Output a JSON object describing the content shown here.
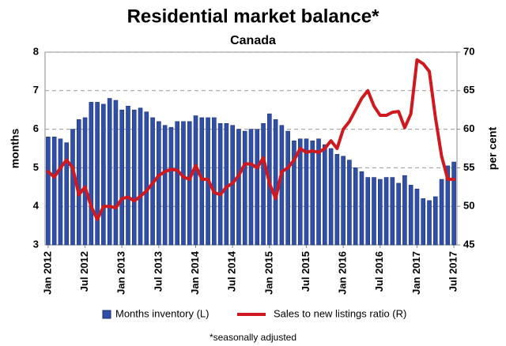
{
  "chart_data": {
    "type": "bar_line",
    "title": "Residential market balance*",
    "subtitle": "Canada",
    "ylabel": "months",
    "y2label": "per cent",
    "note": "*seasonally adjusted",
    "categories": [
      "Jan 2012",
      null,
      null,
      null,
      null,
      null,
      "Jul 2012",
      null,
      null,
      null,
      null,
      null,
      "Jan 2013",
      null,
      null,
      null,
      null,
      null,
      "Jul 2013",
      null,
      null,
      null,
      null,
      null,
      "Jan 2014",
      null,
      null,
      null,
      null,
      null,
      "Jul 2014",
      null,
      null,
      null,
      null,
      null,
      "Jan 2015",
      null,
      null,
      null,
      null,
      null,
      "Jul 2015",
      null,
      null,
      null,
      null,
      null,
      "Jan 2016",
      null,
      null,
      null,
      null,
      null,
      "Jul 2016",
      null,
      null,
      null,
      null,
      null,
      "Jan 2017",
      null,
      null,
      null,
      null,
      null,
      "Jul 2017"
    ],
    "series": [
      {
        "name": "Months inventory (L)",
        "type": "bar",
        "color": "#2f4fa8",
        "axis": "y",
        "values": [
          5.8,
          5.8,
          5.75,
          5.65,
          6.0,
          6.25,
          6.3,
          6.7,
          6.7,
          6.65,
          6.8,
          6.75,
          6.5,
          6.6,
          6.5,
          6.55,
          6.45,
          6.3,
          6.2,
          6.1,
          6.05,
          6.2,
          6.2,
          6.2,
          6.35,
          6.3,
          6.3,
          6.3,
          6.15,
          6.15,
          6.1,
          6.0,
          5.95,
          6.0,
          6.0,
          6.15,
          6.4,
          6.25,
          6.1,
          5.95,
          5.7,
          5.75,
          5.75,
          5.7,
          5.75,
          5.6,
          5.5,
          5.35,
          5.3,
          5.2,
          5.0,
          4.9,
          4.75,
          4.75,
          4.7,
          4.75,
          4.75,
          4.6,
          4.8,
          4.55,
          4.45,
          4.2,
          4.15,
          4.25,
          4.7,
          5.05,
          5.15
        ]
      },
      {
        "name": "Sales to new listings ratio (R)",
        "type": "line",
        "color": "#d0191f",
        "axis": "y2",
        "values": [
          54.5,
          53.8,
          55.0,
          56.0,
          55.0,
          51.5,
          52.5,
          50.0,
          48.3,
          50.0,
          50.0,
          49.8,
          51.0,
          51.2,
          50.7,
          51.3,
          52.0,
          53.0,
          54.0,
          54.5,
          54.8,
          54.7,
          53.8,
          53.5,
          55.3,
          53.5,
          53.5,
          51.8,
          51.5,
          52.5,
          53.0,
          54.0,
          55.5,
          55.5,
          55.0,
          56.3,
          53.0,
          51.0,
          54.5,
          55.0,
          56.0,
          57.5,
          57.0,
          57.2,
          57.0,
          57.5,
          58.5,
          57.5,
          60.0,
          61.0,
          62.5,
          64.0,
          65.0,
          63.0,
          61.8,
          61.8,
          62.2,
          62.3,
          60.2,
          62.0,
          69.0,
          68.5,
          67.5,
          61.5,
          56.5,
          53.5,
          53.5
        ]
      }
    ],
    "ylim": [
      3,
      8
    ],
    "yticks": [
      3,
      4,
      5,
      6,
      7,
      8
    ],
    "y2lim": [
      45,
      70
    ],
    "y2ticks": [
      45,
      50,
      55,
      60,
      65,
      70
    ],
    "grid": true,
    "legend": "bottom"
  }
}
